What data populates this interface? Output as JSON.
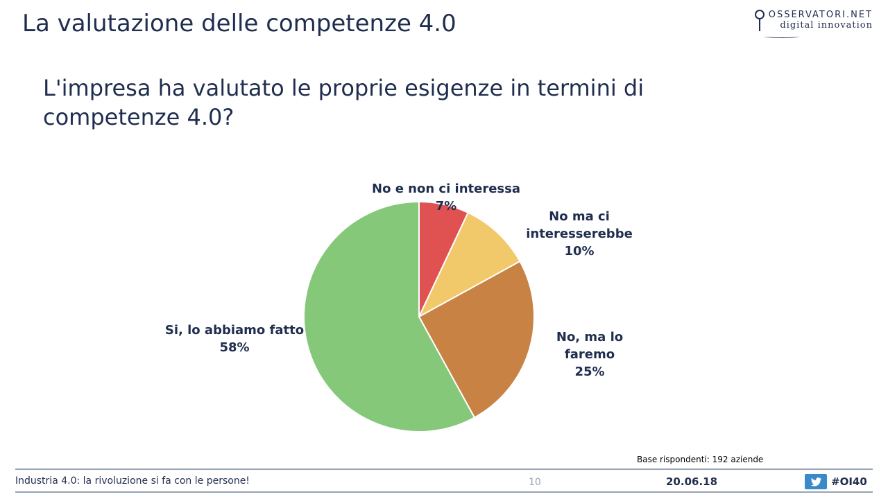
{
  "header": {
    "title": "La valutazione delle competenze 4.0",
    "logo_top": "OSSERVATORI.NET",
    "logo_bottom": "digital innovation"
  },
  "question": "L'impresa ha valutato le proprie esigenze in termini di competenze 4.0?",
  "chart_data": {
    "type": "pie",
    "title": "",
    "slices": [
      {
        "label": "No e non ci interessa",
        "value": 7,
        "display": "7%",
        "color": "#e05252"
      },
      {
        "label": "No ma ci interesserebbe",
        "value": 10,
        "display": "10%",
        "color": "#f1c96a"
      },
      {
        "label": "No, ma lo faremo",
        "value": 25,
        "display": "25%",
        "color": "#c88243"
      },
      {
        "label": "Si, lo abbiamo fatto",
        "value": 58,
        "display": "58%",
        "color": "#86c87a"
      }
    ],
    "start_angle": "12 o'clock",
    "direction": "clockwise",
    "legend": "none",
    "data_labels": "outside"
  },
  "note": "Base rispondenti: 192 aziende",
  "footer": {
    "text": "Industria 4.0: la rivoluzione si fa con le persone!",
    "page": "10",
    "date": "20.06.18",
    "hashtag": "#OI40"
  }
}
